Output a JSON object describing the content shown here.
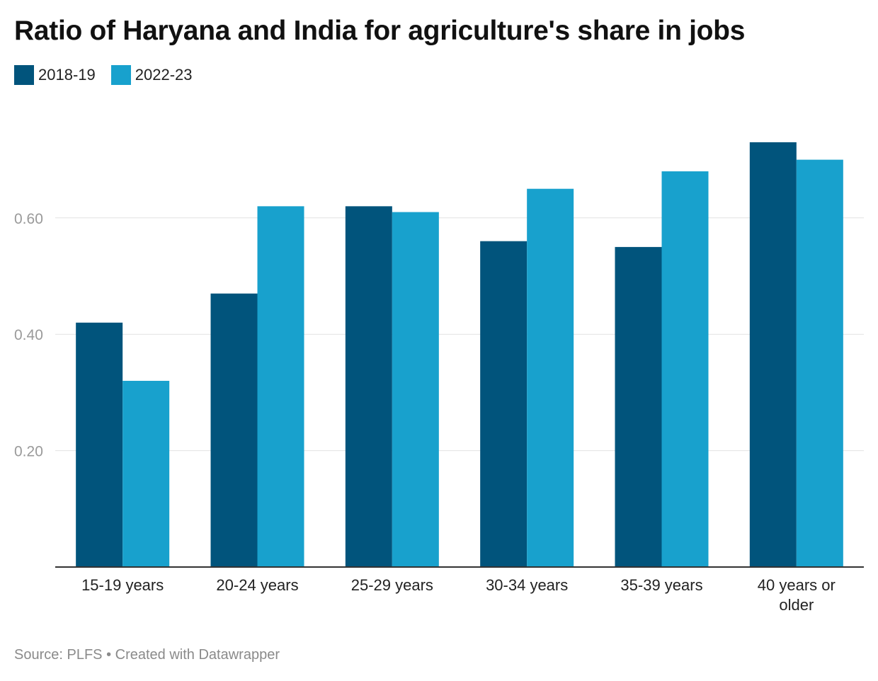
{
  "title": "Ratio of Haryana and India for agriculture's share in jobs",
  "footer": {
    "source": "Source: PLFS",
    "separator": " • ",
    "credit": "Created with Datawrapper"
  },
  "chart_data": {
    "type": "bar",
    "title": "Ratio of Haryana and India for agriculture's share in jobs",
    "categories": [
      [
        "15-19 years"
      ],
      [
        "20-24 years"
      ],
      [
        "25-29 years"
      ],
      [
        "30-34 years"
      ],
      [
        "35-39 years"
      ],
      [
        "40 years or",
        "older"
      ]
    ],
    "series": [
      {
        "name": "2018-19",
        "color": "#01547c",
        "values": [
          0.42,
          0.47,
          0.62,
          0.56,
          0.55,
          0.73
        ]
      },
      {
        "name": "2022-23",
        "color": "#18a1cd",
        "values": [
          0.32,
          0.62,
          0.61,
          0.65,
          0.68,
          0.7
        ]
      }
    ],
    "yticks": [
      "0.20",
      "0.40",
      "0.60"
    ],
    "ylim": [
      0,
      0.8
    ],
    "grid": true,
    "legend": "top-left",
    "xlabel": "",
    "ylabel": ""
  }
}
